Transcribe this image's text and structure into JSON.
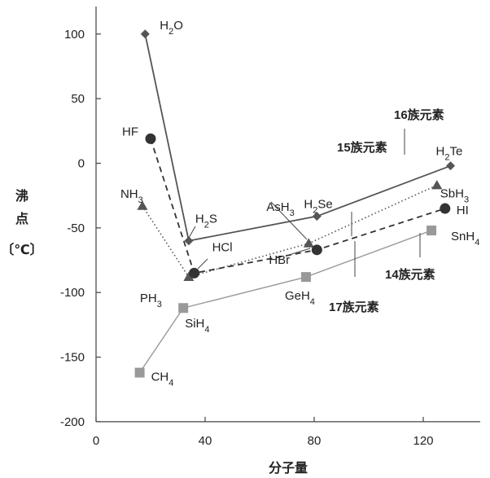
{
  "chart_data": {
    "type": "line",
    "xlabel": "分子量",
    "ylabel_lines": [
      "沸",
      "点",
      "〔℃〕"
    ],
    "xlim": [
      0,
      140
    ],
    "ylim": [
      -200,
      120
    ],
    "xticks": [
      "0",
      "40",
      "80",
      "120"
    ],
    "yticks": [
      "100",
      "50",
      "0",
      "-50",
      "-100",
      "-150",
      "-200"
    ],
    "series": [
      {
        "name": "16族元素",
        "style": "solid",
        "color": "#555555",
        "marker": "diamond",
        "points": [
          {
            "x": 18,
            "y": 100,
            "label_base": "H",
            "label_sub": "2",
            "label_tail": "O"
          },
          {
            "x": 34,
            "y": -60,
            "label_base": "H",
            "label_sub": "2",
            "label_tail": "S"
          },
          {
            "x": 81,
            "y": -41,
            "label_base": "H",
            "label_sub": "2",
            "label_tail": "Se"
          },
          {
            "x": 130,
            "y": -2,
            "label_base": "H",
            "label_sub": "2",
            "label_tail": "Te"
          }
        ]
      },
      {
        "name": "15族元素",
        "style": "dotted",
        "color": "#555555",
        "marker": "triangle",
        "points": [
          {
            "x": 17,
            "y": -33,
            "label_base": "NH",
            "label_sub": "3",
            "label_tail": ""
          },
          {
            "x": 34,
            "y": -88,
            "label_base": "PH",
            "label_sub": "3",
            "label_tail": ""
          },
          {
            "x": 78,
            "y": -62,
            "label_base": "AsH",
            "label_sub": "3",
            "label_tail": ""
          },
          {
            "x": 125,
            "y": -17,
            "label_base": "SbH",
            "label_sub": "3",
            "label_tail": ""
          }
        ]
      },
      {
        "name": "17族元素",
        "style": "dashed",
        "color": "#333333",
        "marker": "circle",
        "points": [
          {
            "x": 20,
            "y": 19,
            "label_base": "HF",
            "label_sub": "",
            "label_tail": ""
          },
          {
            "x": 36,
            "y": -85,
            "label_base": "HCl",
            "label_sub": "",
            "label_tail": ""
          },
          {
            "x": 81,
            "y": -67,
            "label_base": "HBr",
            "label_sub": "",
            "label_tail": ""
          },
          {
            "x": 128,
            "y": -35,
            "label_base": "HI",
            "label_sub": "",
            "label_tail": ""
          }
        ]
      },
      {
        "name": "14族元素",
        "style": "solid-light",
        "color": "#999999",
        "marker": "square",
        "points": [
          {
            "x": 16,
            "y": -162,
            "label_base": "CH",
            "label_sub": "4",
            "label_tail": ""
          },
          {
            "x": 32,
            "y": -112,
            "label_base": "SiH",
            "label_sub": "4",
            "label_tail": ""
          },
          {
            "x": 77,
            "y": -88,
            "label_base": "GeH",
            "label_sub": "4",
            "label_tail": ""
          },
          {
            "x": 123,
            "y": -52,
            "label_base": "SnH",
            "label_sub": "4",
            "label_tail": ""
          }
        ]
      }
    ],
    "group_labels": [
      "16族元素",
      "15族元素",
      "17族元素",
      "14族元素"
    ]
  }
}
